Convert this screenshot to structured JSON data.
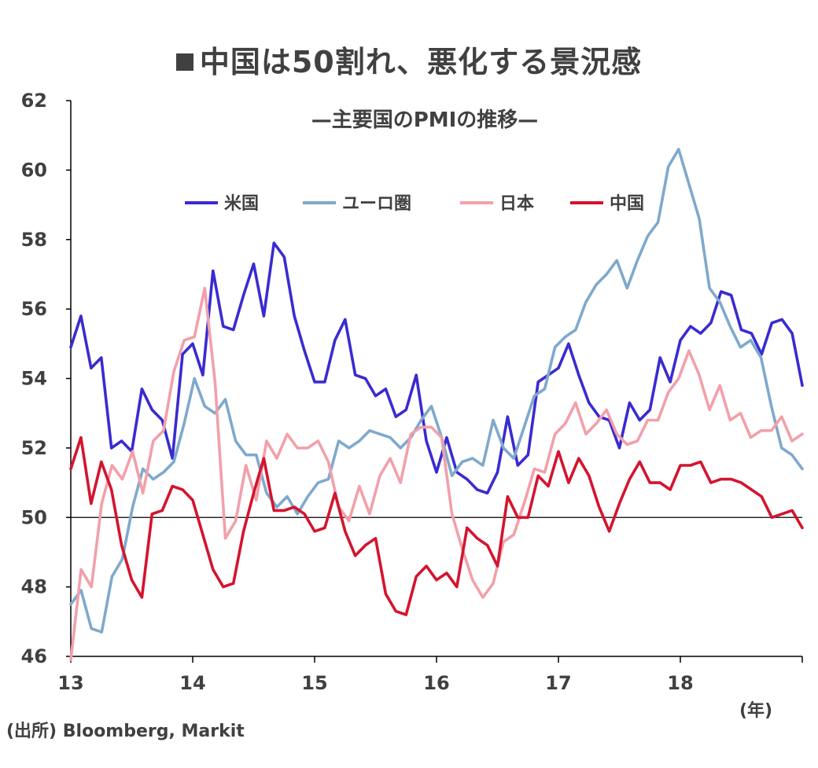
{
  "title": "中国は50割れ、悪化する景況感",
  "subtitle": "—主要国のPMIの推移—",
  "source": "(出所) Bloomberg, Markit",
  "x_unit": "(年)",
  "chart_data": {
    "type": "line",
    "title": "中国は50割れ、悪化する景況感",
    "subtitle": "—主要国のPMIの推移—",
    "xlabel": "",
    "ylabel": "",
    "ylim": [
      46,
      62
    ],
    "yticks": [
      46,
      48,
      50,
      52,
      54,
      56,
      58,
      60,
      62
    ],
    "xlim": [
      13,
      19
    ],
    "xticks": [
      "13",
      "14",
      "15",
      "16",
      "17",
      "18"
    ],
    "reference_line": 50,
    "legend_position": "top",
    "series": [
      {
        "name": "米国",
        "color": "#3a2bd0",
        "values": [
          54.9,
          55.8,
          54.3,
          54.6,
          52.0,
          52.2,
          51.9,
          53.7,
          53.1,
          52.8,
          51.7,
          54.7,
          55.0,
          54.1,
          57.1,
          55.5,
          55.4,
          56.4,
          57.3,
          55.8,
          57.9,
          57.5,
          55.8,
          54.8,
          53.9,
          53.9,
          55.1,
          55.7,
          54.1,
          54.0,
          53.5,
          53.7,
          52.9,
          53.1,
          54.1,
          52.2,
          51.3,
          52.3,
          51.3,
          51.1,
          50.8,
          50.7,
          51.3,
          52.9,
          51.5,
          51.8,
          53.9,
          54.1,
          54.3,
          55.0,
          54.1,
          53.3,
          52.9,
          52.8,
          52.0,
          53.3,
          52.8,
          53.1,
          54.6,
          53.9,
          55.1,
          55.5,
          55.3,
          55.6,
          56.5,
          56.4,
          55.4,
          55.3,
          54.7,
          55.6,
          55.7,
          55.3,
          53.8
        ]
      },
      {
        "name": "ユーロ圏",
        "color": "#7fa9cc",
        "values": [
          47.5,
          47.9,
          46.8,
          46.7,
          48.3,
          48.8,
          50.3,
          51.4,
          51.1,
          51.3,
          51.6,
          52.7,
          54.0,
          53.2,
          53.0,
          53.4,
          52.2,
          51.8,
          51.8,
          50.7,
          50.3,
          50.6,
          50.1,
          50.6,
          51.0,
          51.1,
          52.2,
          52.0,
          52.2,
          52.5,
          52.4,
          52.3,
          52.0,
          52.3,
          52.8,
          53.2,
          52.3,
          51.2,
          51.6,
          51.7,
          51.5,
          52.8,
          52.0,
          51.7,
          52.6,
          53.5,
          53.7,
          54.9,
          55.2,
          55.4,
          56.2,
          56.7,
          57.0,
          57.4,
          56.6,
          57.4,
          58.1,
          58.5,
          60.1,
          60.6,
          59.6,
          58.6,
          56.6,
          56.2,
          55.5,
          54.9,
          55.1,
          54.6,
          53.2,
          52.0,
          51.8,
          51.4
        ]
      },
      {
        "name": "日本",
        "color": "#f2a0aa",
        "values": [
          45.9,
          48.5,
          48.0,
          50.4,
          51.5,
          51.1,
          51.9,
          50.7,
          52.2,
          52.5,
          54.2,
          55.1,
          55.2,
          56.6,
          53.9,
          49.4,
          49.9,
          51.5,
          50.5,
          52.2,
          51.7,
          52.4,
          52.0,
          52.0,
          52.2,
          51.6,
          50.3,
          49.9,
          50.9,
          50.1,
          51.2,
          51.7,
          51.0,
          52.4,
          52.6,
          52.6,
          52.3,
          50.1,
          49.1,
          48.2,
          47.7,
          48.1,
          49.3,
          49.5,
          50.4,
          51.4,
          51.3,
          52.4,
          52.7,
          53.3,
          52.4,
          52.7,
          53.1,
          52.4,
          52.1,
          52.2,
          52.8,
          52.8,
          53.6,
          54.0,
          54.8,
          54.1,
          53.1,
          53.8,
          52.8,
          53.0,
          52.3,
          52.5,
          52.5,
          52.9,
          52.2,
          52.4
        ]
      },
      {
        "name": "中国",
        "color": "#d4142e",
        "values": [
          51.4,
          52.3,
          50.4,
          51.6,
          50.8,
          49.2,
          48.2,
          47.7,
          50.1,
          50.2,
          50.9,
          50.8,
          50.5,
          49.5,
          48.5,
          48.0,
          48.1,
          49.6,
          50.7,
          51.7,
          50.2,
          50.2,
          50.3,
          50.1,
          49.6,
          49.7,
          50.7,
          49.6,
          48.9,
          49.2,
          49.4,
          47.8,
          47.3,
          47.2,
          48.3,
          48.6,
          48.2,
          48.4,
          48.0,
          49.7,
          49.4,
          49.2,
          48.6,
          50.6,
          50.0,
          50.0,
          51.2,
          50.9,
          51.9,
          51.0,
          51.7,
          51.2,
          50.3,
          49.6,
          50.4,
          51.1,
          51.6,
          51.0,
          51.0,
          50.8,
          51.5,
          51.5,
          51.6,
          51.0,
          51.1,
          51.1,
          51.0,
          50.8,
          50.6,
          50.0,
          50.1,
          50.2,
          49.7
        ]
      }
    ]
  }
}
